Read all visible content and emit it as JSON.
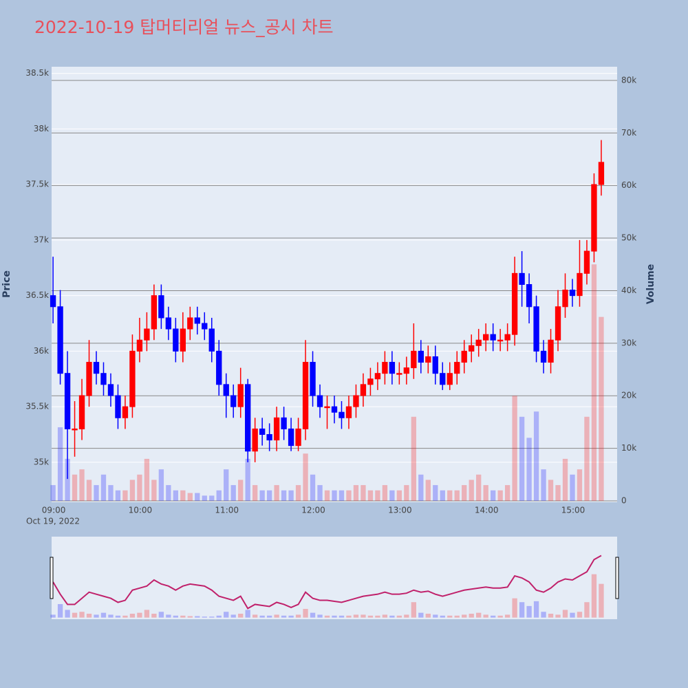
{
  "chart_data": {
    "type": "candlestick",
    "title": "2022-10-19 탑머티리얼 뉴스_공시 차트",
    "y_title": "Price",
    "y2_title": "Volume",
    "x_date_label": "Oct 19, 2022",
    "increasing_color": "#ff0000",
    "decreasing_color": "#0000ff",
    "x": [
      "09:00",
      "09:05",
      "09:10",
      "09:15",
      "09:20",
      "09:25",
      "09:30",
      "09:35",
      "09:40",
      "09:45",
      "09:50",
      "09:55",
      "10:00",
      "10:05",
      "10:10",
      "10:15",
      "10:20",
      "10:25",
      "10:30",
      "10:35",
      "10:40",
      "10:45",
      "10:50",
      "10:55",
      "11:00",
      "11:05",
      "11:10",
      "11:15",
      "11:20",
      "11:25",
      "11:30",
      "11:35",
      "11:40",
      "11:45",
      "11:50",
      "11:55",
      "12:00",
      "12:05",
      "12:10",
      "12:15",
      "12:20",
      "12:25",
      "12:30",
      "12:35",
      "12:40",
      "12:45",
      "12:50",
      "12:55",
      "13:00",
      "13:05",
      "13:10",
      "13:15",
      "13:20",
      "13:25",
      "13:30",
      "13:35",
      "13:40",
      "13:45",
      "13:50",
      "13:55",
      "14:00",
      "14:05",
      "14:10",
      "14:15",
      "14:20",
      "14:25",
      "14:30",
      "14:35",
      "14:40",
      "14:45",
      "14:50",
      "14:55",
      "15:00",
      "15:05",
      "15:10",
      "15:15",
      "15:20"
    ],
    "open": [
      36500,
      36400,
      35800,
      35300,
      35300,
      35600,
      35900,
      35800,
      35700,
      35600,
      35400,
      35500,
      36000,
      36100,
      36200,
      36500,
      36300,
      36200,
      36000,
      36200,
      36300,
      36250,
      36200,
      36000,
      35700,
      35600,
      35500,
      35700,
      35100,
      35300,
      35250,
      35200,
      35400,
      35300,
      35150,
      35300,
      35900,
      35600,
      35500,
      35500,
      35450,
      35400,
      35500,
      35600,
      35700,
      35750,
      35800,
      35900,
      35800,
      35800,
      35850,
      36000,
      35900,
      35950,
      35800,
      35700,
      35800,
      35900,
      36000,
      36050,
      36100,
      36150,
      36100,
      36100,
      36150,
      36700,
      36600,
      36400,
      36000,
      35900,
      36100,
      36400,
      36550,
      36500,
      36700,
      36900,
      37500
    ],
    "high": [
      36850,
      36550,
      36000,
      35550,
      35750,
      36100,
      36000,
      35900,
      35800,
      35700,
      35600,
      36150,
      36300,
      36350,
      36600,
      36600,
      36400,
      36300,
      36350,
      36400,
      36400,
      36350,
      36300,
      36100,
      35800,
      35700,
      35850,
      35750,
      35400,
      35400,
      35350,
      35500,
      35500,
      35400,
      35400,
      36100,
      36000,
      35700,
      35600,
      35600,
      35550,
      35600,
      35700,
      35800,
      35850,
      35900,
      36000,
      36000,
      35900,
      35950,
      36250,
      36100,
      36050,
      36050,
      35900,
      35900,
      36000,
      36100,
      36150,
      36200,
      36250,
      36250,
      36200,
      36250,
      36850,
      36900,
      36700,
      36500,
      36100,
      36200,
      36550,
      36700,
      36650,
      37000,
      37000,
      37600,
      37900
    ],
    "low": [
      36250,
      35700,
      34850,
      35050,
      35200,
      35500,
      35700,
      35600,
      35500,
      35300,
      35300,
      35400,
      35900,
      36000,
      36100,
      36200,
      36100,
      35900,
      35900,
      36100,
      36150,
      36100,
      35900,
      35600,
      35400,
      35400,
      35400,
      35000,
      35000,
      35150,
      35100,
      35100,
      35200,
      35100,
      35100,
      35200,
      35500,
      35400,
      35300,
      35350,
      35300,
      35300,
      35400,
      35500,
      35600,
      35650,
      35700,
      35700,
      35700,
      35700,
      35750,
      35800,
      35800,
      35700,
      35650,
      35650,
      35700,
      35800,
      35900,
      35950,
      36000,
      36000,
      36000,
      36000,
      36050,
      36400,
      36250,
      35900,
      35800,
      35800,
      36000,
      36300,
      36400,
      36400,
      36600,
      36800,
      37400
    ],
    "close": [
      36400,
      35800,
      35300,
      35300,
      35600,
      35900,
      35800,
      35700,
      35600,
      35400,
      35500,
      36000,
      36100,
      36200,
      36500,
      36300,
      36200,
      36000,
      36200,
      36300,
      36250,
      36200,
      36000,
      35700,
      35600,
      35500,
      35700,
      35100,
      35300,
      35250,
      35200,
      35400,
      35300,
      35150,
      35300,
      35900,
      35600,
      35500,
      35500,
      35450,
      35400,
      35500,
      35600,
      35700,
      35750,
      35800,
      35900,
      35800,
      35800,
      35850,
      36000,
      35900,
      35950,
      35800,
      35700,
      35800,
      35900,
      36000,
      36050,
      36100,
      36150,
      36100,
      36100,
      36150,
      36700,
      36600,
      36400,
      36000,
      35900,
      36100,
      36400,
      36550,
      36500,
      36700,
      36900,
      37500,
      37700
    ],
    "volume": [
      3000,
      14000,
      8000,
      5000,
      6000,
      4000,
      3000,
      5000,
      3000,
      2000,
      2000,
      4000,
      5000,
      8000,
      4000,
      6000,
      3000,
      2000,
      2000,
      1500,
      1500,
      1000,
      1000,
      2000,
      6000,
      3000,
      4000,
      8000,
      3000,
      2000,
      2000,
      3000,
      2000,
      2000,
      3000,
      9000,
      5000,
      3000,
      2000,
      2000,
      2000,
      2000,
      3000,
      3000,
      2000,
      2000,
      3000,
      2000,
      2000,
      3000,
      16000,
      5000,
      4000,
      3000,
      2000,
      2000,
      2000,
      3000,
      4000,
      5000,
      3000,
      2000,
      2000,
      3000,
      20000,
      16000,
      12000,
      17000,
      6000,
      4000,
      3000,
      8000,
      5000,
      6000,
      16000,
      45000,
      35000
    ],
    "xlim": [
      "08:59",
      "15:31"
    ],
    "xticks": [
      "09:00",
      "10:00",
      "11:00",
      "12:00",
      "13:00",
      "14:00",
      "15:00"
    ],
    "ylim": [
      34640,
      38560
    ],
    "yticks": [
      {
        "value": 35000,
        "label": "35k"
      },
      {
        "value": 35500,
        "label": "35.5k"
      },
      {
        "value": 36000,
        "label": "36k"
      },
      {
        "value": 36500,
        "label": "36.5k"
      },
      {
        "value": 37000,
        "label": "37k"
      },
      {
        "value": 37500,
        "label": "37.5k"
      },
      {
        "value": 38000,
        "label": "38k"
      },
      {
        "value": 38500,
        "label": "38.5k"
      }
    ],
    "y2lim": [
      -260,
      82600
    ],
    "y2ticks": [
      0,
      {
        "value": 10000,
        "label": "10k"
      },
      {
        "value": 20000,
        "label": "20k"
      },
      {
        "value": 30000,
        "label": "30k"
      },
      {
        "value": 40000,
        "label": "40k"
      },
      {
        "value": 50000,
        "label": "50k"
      },
      {
        "value": 60000,
        "label": "60k"
      },
      {
        "value": 70000,
        "label": "70k"
      },
      {
        "value": 80000,
        "label": "80k"
      }
    ],
    "grid": true,
    "range_slider": true
  }
}
